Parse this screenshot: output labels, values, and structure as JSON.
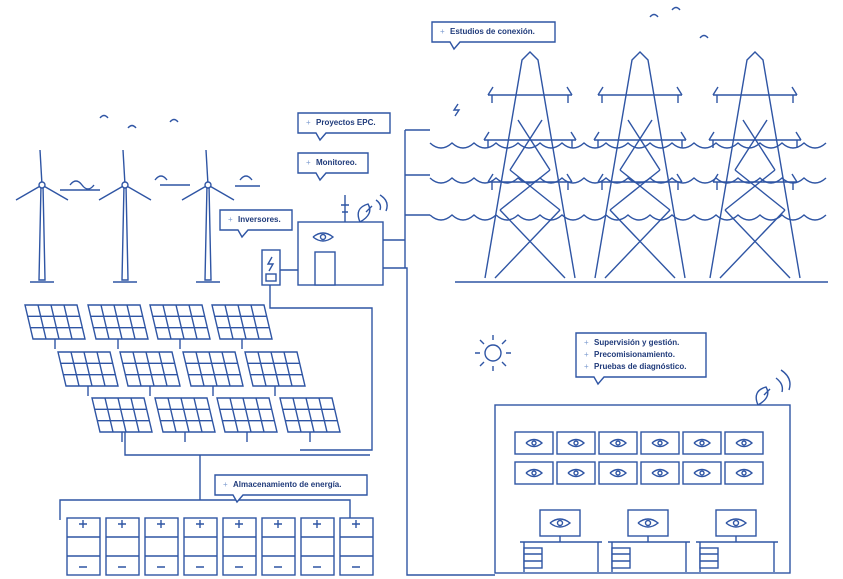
{
  "callouts": [
    {
      "lines": [
        "Estudios de conexión."
      ]
    },
    {
      "lines": [
        "Proyectos EPC."
      ]
    },
    {
      "lines": [
        "Monitoreo."
      ]
    },
    {
      "lines": [
        "Inversores."
      ]
    },
    {
      "lines": [
        "Supervisión y gestión.",
        "Precomisionamiento.",
        "Pruebas de diagnóstico."
      ]
    },
    {
      "lines": [
        "Almacenamiento de energía."
      ]
    }
  ]
}
